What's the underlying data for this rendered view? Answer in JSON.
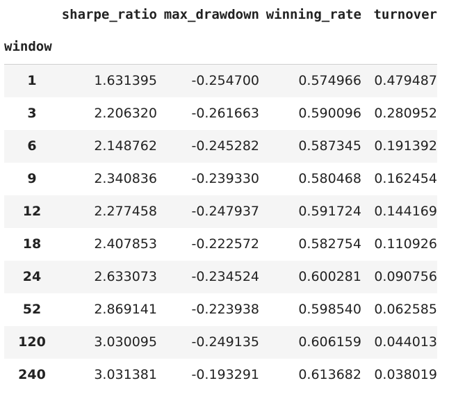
{
  "table": {
    "columns": [
      "sharpe_ratio",
      "max_drawdown",
      "winning_rate",
      "turnover"
    ],
    "index_name": "window",
    "rows": [
      {
        "window": "1",
        "values": [
          "1.631395",
          "-0.254700",
          "0.574966",
          "0.479487"
        ]
      },
      {
        "window": "3",
        "values": [
          "2.206320",
          "-0.261663",
          "0.590096",
          "0.280952"
        ]
      },
      {
        "window": "6",
        "values": [
          "2.148762",
          "-0.245282",
          "0.587345",
          "0.191392"
        ]
      },
      {
        "window": "9",
        "values": [
          "2.340836",
          "-0.239330",
          "0.580468",
          "0.162454"
        ]
      },
      {
        "window": "12",
        "values": [
          "2.277458",
          "-0.247937",
          "0.591724",
          "0.144169"
        ]
      },
      {
        "window": "18",
        "values": [
          "2.407853",
          "-0.222572",
          "0.582754",
          "0.110926"
        ]
      },
      {
        "window": "24",
        "values": [
          "2.633073",
          "-0.234524",
          "0.600281",
          "0.090756"
        ]
      },
      {
        "window": "52",
        "values": [
          "2.869141",
          "-0.223938",
          "0.598540",
          "0.062585"
        ]
      },
      {
        "window": "120",
        "values": [
          "3.030095",
          "-0.249135",
          "0.606159",
          "0.044013"
        ]
      },
      {
        "window": "240",
        "values": [
          "3.031381",
          "-0.193291",
          "0.613682",
          "0.038019"
        ]
      }
    ]
  },
  "colors": {
    "stripe": "#f5f5f5",
    "text": "#222222",
    "header_rule": "#cfcfcf"
  }
}
